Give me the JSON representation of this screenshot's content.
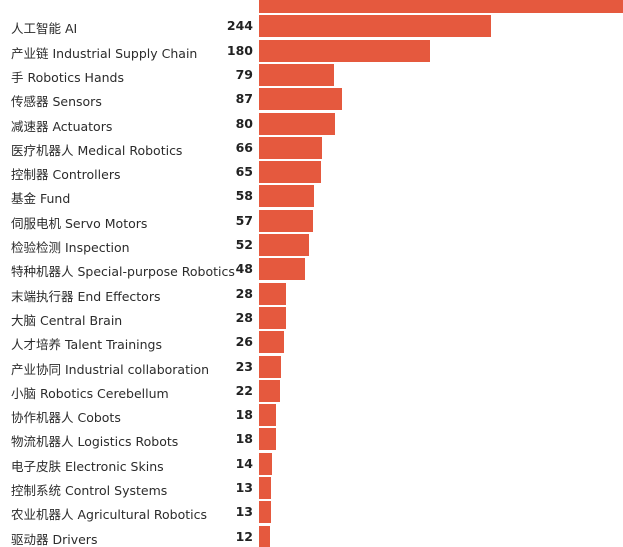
{
  "chart_data": {
    "type": "bar",
    "orientation": "horizontal",
    "color": "#e5593e",
    "categories": [
      "",
      "人工智能 AI",
      "产业链 Industrial Supply Chain",
      "手 Robotics Hands",
      "传感器 Sensors",
      "减速器 Actuators",
      "医疗机器人 Medical Robotics",
      "控制器 Controllers",
      "基金 Fund",
      "伺服电机 Servo Motors",
      "检验检测 Inspection",
      "特种机器人 Special-purpose Robotics",
      "末端执行器 End Effectors",
      "大脑 Central Brain",
      "人才培养 Talent Trainings",
      "产业协同 Industrial collaboration",
      "小脑 Robotics Cerebellum",
      "协作机器人 Cobots",
      "物流机器人 Logistics Robots",
      "电子皮肤 Electronic Skins",
      "控制系统 Control Systems",
      "农业机器人 Agricultural Robotics",
      "驱动器 Drivers",
      ""
    ],
    "values": [
      null,
      244,
      180,
      79,
      87,
      80,
      66,
      65,
      58,
      57,
      52,
      48,
      28,
      28,
      26,
      23,
      22,
      18,
      18,
      14,
      13,
      13,
      12,
      null
    ],
    "value_labels": [
      "",
      "244",
      "180",
      "79",
      "87",
      "80",
      "66",
      "65",
      "58",
      "57",
      "52",
      "48",
      "28",
      "28",
      "26",
      "23",
      "22",
      "18",
      "18",
      "14",
      "13",
      "13",
      "12",
      ""
    ],
    "partial_bar_fractions": {
      "first": 1.0,
      "last": 0.06
    },
    "title": "",
    "xlabel": "",
    "ylabel": ""
  }
}
